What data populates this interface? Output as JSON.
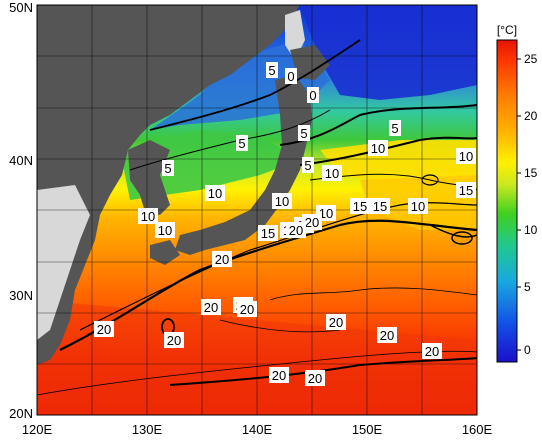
{
  "map": {
    "lat_labels": [
      "50N",
      "40N",
      "30N",
      "20N"
    ],
    "lon_labels": [
      "120E",
      "130E",
      "140E",
      "150E",
      "160E"
    ],
    "contour_labels": [
      "5",
      "5",
      "0",
      "0",
      "5",
      "5",
      "5",
      "5",
      "10",
      "10",
      "10",
      "15",
      "10",
      "10",
      "10",
      "15",
      "15",
      "10",
      "10",
      "10",
      "15",
      "15",
      "15",
      "20",
      "20",
      "20",
      "20",
      "20",
      "20",
      "20",
      "20",
      "20",
      "20",
      "20",
      "20",
      "20"
    ],
    "colors": {
      "land": "#555555",
      "ice_coast": "#d8d8d8",
      "contour": "#000000"
    }
  },
  "colorbar": {
    "unit": "[°C]",
    "ticks": [
      "25",
      "20",
      "15",
      "10",
      "5",
      "0"
    ],
    "range": [
      -2,
      26
    ]
  }
}
